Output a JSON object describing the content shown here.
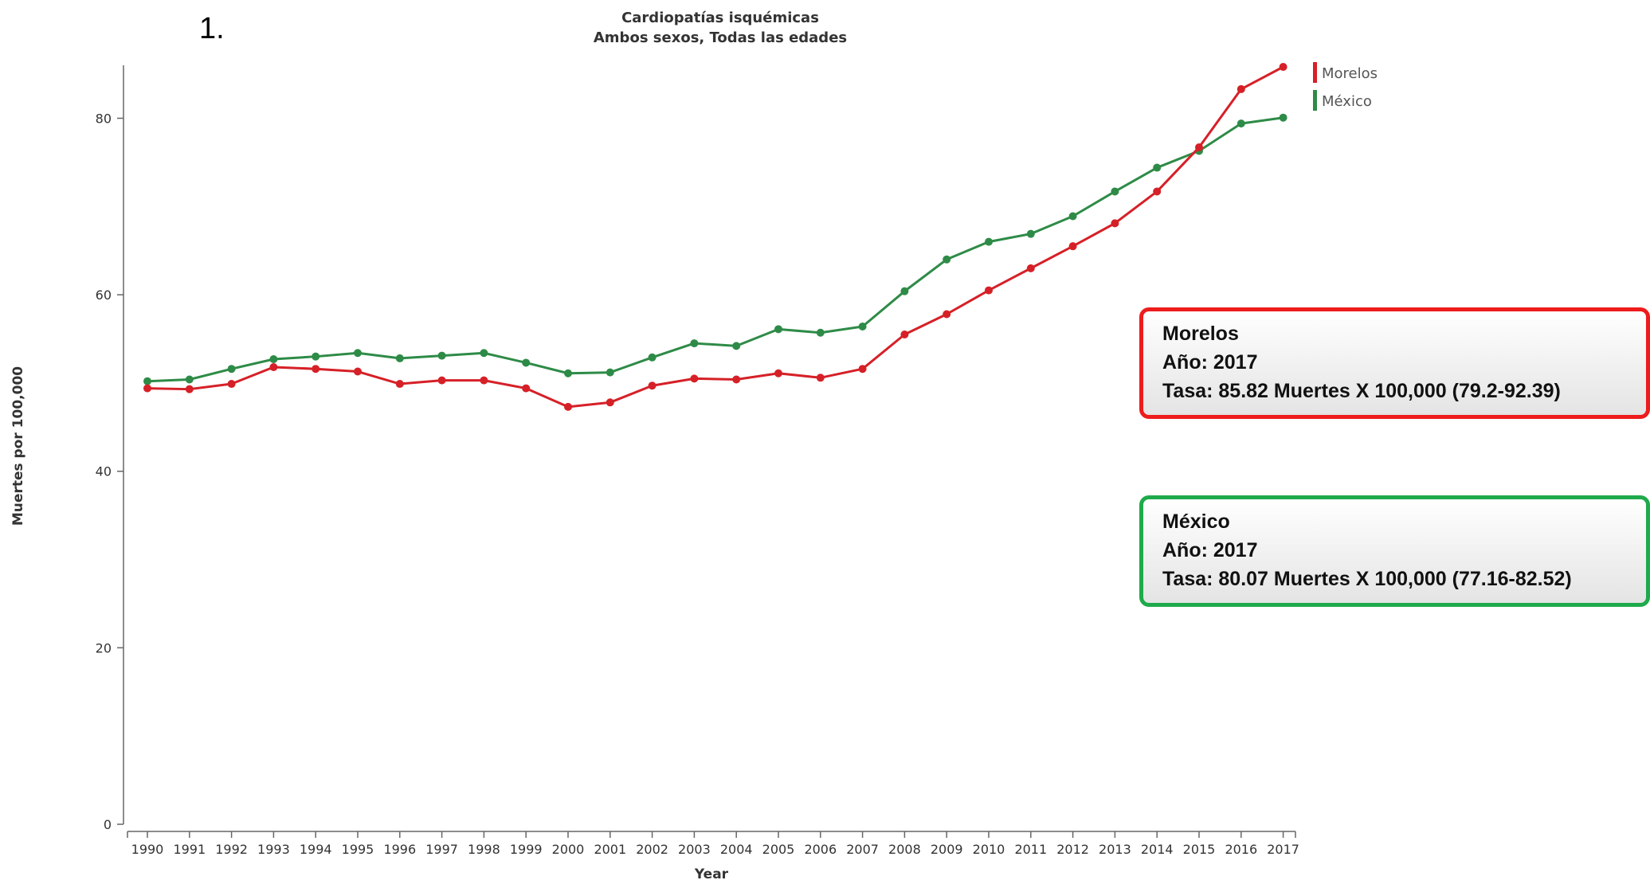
{
  "slide_number": "1.",
  "chart_data": {
    "type": "line",
    "title": "Cardiopatías isquémicas",
    "subtitle": "Ambos sexos, Todas las edades",
    "xlabel": "Year",
    "ylabel": "Muertes por 100,000",
    "ylim": [
      0,
      86
    ],
    "yticks": [
      "0",
      "20",
      "40",
      "60",
      "80"
    ],
    "ytick_values": [
      0,
      20,
      40,
      60,
      80
    ],
    "categories": [
      "1990",
      "1991",
      "1992",
      "1993",
      "1994",
      "1995",
      "1996",
      "1997",
      "1998",
      "1999",
      "2000",
      "2001",
      "2002",
      "2003",
      "2004",
      "2005",
      "2006",
      "2007",
      "2008",
      "2009",
      "2010",
      "2011",
      "2012",
      "2013",
      "2014",
      "2015",
      "2016",
      "2017"
    ],
    "grid": false,
    "legend_position": "top-right",
    "series": [
      {
        "name": "Morelos",
        "color": "#d62027",
        "values": [
          49.4,
          49.3,
          49.9,
          51.8,
          51.6,
          51.3,
          49.9,
          50.3,
          50.3,
          49.4,
          47.3,
          47.8,
          49.7,
          50.5,
          50.4,
          51.1,
          50.6,
          51.6,
          55.5,
          57.8,
          60.5,
          63.0,
          65.5,
          68.1,
          71.7,
          76.7,
          83.3,
          85.82
        ]
      },
      {
        "name": "México",
        "color": "#2e8b47",
        "values": [
          50.2,
          50.4,
          51.6,
          52.7,
          53.0,
          53.4,
          52.8,
          53.1,
          53.4,
          52.3,
          51.1,
          51.2,
          52.9,
          54.5,
          54.2,
          56.1,
          55.7,
          56.4,
          60.4,
          64.0,
          66.0,
          66.9,
          68.9,
          71.7,
          74.4,
          76.3,
          79.4,
          80.07
        ]
      }
    ]
  },
  "tooltips": {
    "morelos": {
      "name": "Morelos",
      "year": "Año: 2017",
      "rate": "Tasa: 85.82 Muertes X 100,000 (79.2-92.39)"
    },
    "mexico": {
      "name": "México",
      "year": "Año: 2017",
      "rate": "Tasa: 80.07 Muertes X 100,000 (77.16-82.52)"
    }
  }
}
